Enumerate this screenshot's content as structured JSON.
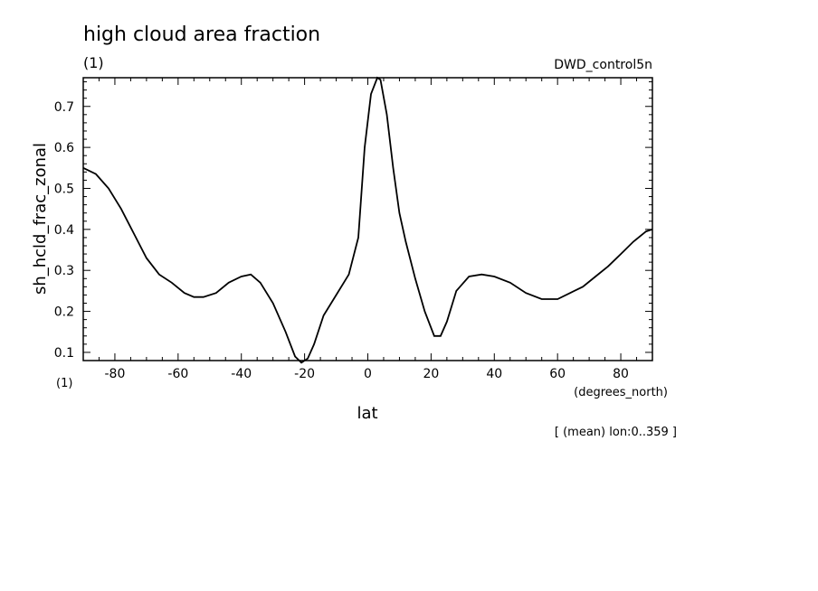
{
  "chart_data": {
    "type": "line",
    "title": "high cloud area fraction",
    "units_top": "(1)",
    "units_bottom": "(1)",
    "dataset": "DWD_control5n",
    "ylabel": "sh_hcld_frac_zonal",
    "xlabel": "lat",
    "xunits": "(degrees_north)",
    "note": "[ (mean) lon:0..359 ]",
    "xlim": [
      -90,
      90
    ],
    "ylim": [
      0.08,
      0.77
    ],
    "xticks": [
      -80,
      -60,
      -40,
      -20,
      0,
      20,
      40,
      60,
      80
    ],
    "xtick_labels": [
      "-80",
      "-60",
      "-40",
      "-20",
      "0",
      "20",
      "40",
      "60",
      "80"
    ],
    "yticks": [
      0.1,
      0.2,
      0.3,
      0.4,
      0.5,
      0.6,
      0.7
    ],
    "ytick_labels": [
      "0.1",
      "0.2",
      "0.3",
      "0.4",
      "0.5",
      "0.6",
      "0.7"
    ],
    "grid": false,
    "series": [
      {
        "x": [
          -90,
          -86,
          -82,
          -78,
          -74,
          -70,
          -66,
          -62,
          -58,
          -55,
          -52,
          -48,
          -44,
          -40,
          -37,
          -34,
          -30,
          -26,
          -23,
          -21,
          -19,
          -17,
          -14,
          -10,
          -6,
          -3,
          -1,
          1,
          3,
          4,
          6,
          8,
          10,
          12,
          15,
          18,
          21,
          23,
          25,
          28,
          32,
          36,
          40,
          45,
          50,
          55,
          60,
          64,
          68,
          72,
          76,
          80,
          84,
          88,
          90
        ],
        "y": [
          0.55,
          0.535,
          0.5,
          0.45,
          0.39,
          0.33,
          0.29,
          0.27,
          0.245,
          0.235,
          0.235,
          0.245,
          0.27,
          0.285,
          0.29,
          0.27,
          0.22,
          0.15,
          0.09,
          0.075,
          0.085,
          0.12,
          0.19,
          0.24,
          0.29,
          0.38,
          0.6,
          0.73,
          0.77,
          0.765,
          0.68,
          0.55,
          0.44,
          0.37,
          0.28,
          0.2,
          0.14,
          0.14,
          0.175,
          0.25,
          0.285,
          0.29,
          0.285,
          0.27,
          0.245,
          0.23,
          0.23,
          0.245,
          0.26,
          0.285,
          0.31,
          0.34,
          0.37,
          0.395,
          0.4
        ]
      }
    ]
  }
}
